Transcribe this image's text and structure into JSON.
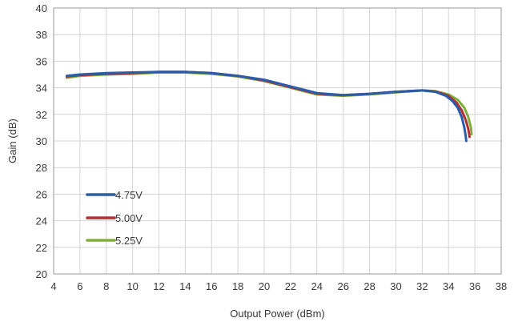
{
  "chart_data": {
    "type": "line",
    "xlabel": "Output Power (dBm)",
    "ylabel": "Gain (dB)",
    "xlim": [
      4,
      38
    ],
    "ylim": [
      20,
      40
    ],
    "xticks": [
      "4",
      "6",
      "8",
      "10",
      "12",
      "14",
      "16",
      "18",
      "20",
      "22",
      "24",
      "26",
      "28",
      "30",
      "32",
      "34",
      "36",
      "38"
    ],
    "yticks": [
      "20",
      "22",
      "24",
      "26",
      "28",
      "30",
      "32",
      "34",
      "36",
      "38",
      "40"
    ],
    "grid": true,
    "legend_position": "lower-left",
    "series": [
      {
        "name": "4.75V",
        "color": "#2a5caa",
        "x": [
          5.0,
          6.0,
          8.0,
          10.0,
          12.0,
          14.0,
          16.0,
          18.0,
          20.0,
          22.0,
          24.0,
          26.0,
          28.0,
          30.0,
          32.0,
          33.0,
          33.8,
          34.3,
          34.7,
          35.0,
          35.2,
          35.3,
          35.35
        ],
        "y": [
          34.9,
          35.0,
          35.1,
          35.15,
          35.2,
          35.2,
          35.1,
          34.9,
          34.6,
          34.1,
          33.6,
          33.45,
          33.55,
          33.7,
          33.8,
          33.7,
          33.4,
          33.0,
          32.5,
          31.8,
          31.0,
          30.4,
          30.0
        ]
      },
      {
        "name": "5.00V",
        "color": "#b03030",
        "x": [
          5.0,
          6.0,
          8.0,
          10.0,
          12.0,
          14.0,
          16.0,
          18.0,
          20.0,
          22.0,
          24.0,
          26.0,
          28.0,
          30.0,
          32.0,
          33.0,
          34.0,
          34.6,
          35.0,
          35.3,
          35.5,
          35.6
        ],
        "y": [
          34.85,
          34.95,
          35.05,
          35.1,
          35.2,
          35.2,
          35.1,
          34.9,
          34.55,
          34.05,
          33.55,
          33.45,
          33.55,
          33.7,
          33.8,
          33.72,
          33.4,
          32.9,
          32.3,
          31.6,
          30.9,
          30.3
        ]
      },
      {
        "name": "5.25V",
        "color": "#7fae3a",
        "x": [
          5.0,
          6.0,
          8.0,
          10.0,
          12.0,
          14.0,
          16.0,
          18.0,
          20.0,
          22.0,
          24.0,
          26.0,
          28.0,
          30.0,
          32.0,
          33.0,
          34.0,
          34.7,
          35.2,
          35.5,
          35.7,
          35.75
        ],
        "y": [
          34.75,
          34.9,
          35.0,
          35.05,
          35.15,
          35.15,
          35.05,
          34.85,
          34.5,
          34.0,
          33.5,
          33.4,
          33.5,
          33.65,
          33.8,
          33.75,
          33.5,
          33.1,
          32.5,
          31.8,
          31.0,
          30.5
        ]
      }
    ]
  }
}
